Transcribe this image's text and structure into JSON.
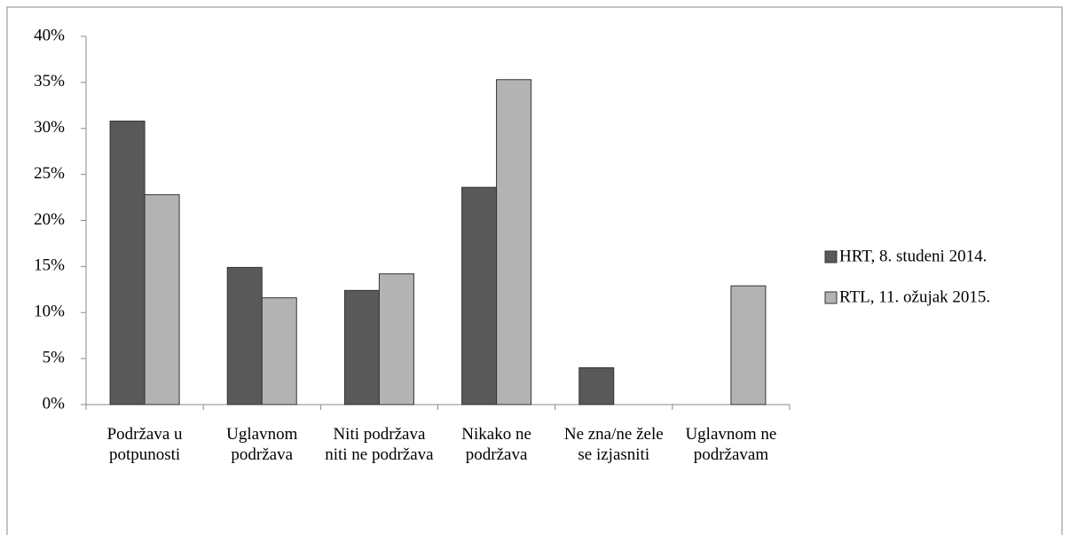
{
  "chart_data": {
    "type": "bar",
    "categories": [
      "Podržava u potpunosti",
      "Uglavnom podržava",
      "Niti podržava niti ne podržava",
      "Nikako ne podržava",
      "Ne zna/ne žele se izjasniti",
      "Uglavnom ne podržavam"
    ],
    "series": [
      {
        "name": "HRT, 8. studeni 2014.",
        "color": "#595959",
        "values": [
          30.8,
          14.9,
          12.4,
          23.6,
          4.0,
          0
        ]
      },
      {
        "name": "RTL, 11. ožujak 2015.",
        "color": "#b3b3b3",
        "values": [
          22.8,
          11.6,
          14.2,
          35.3,
          0,
          12.9
        ]
      }
    ],
    "ylim": [
      0,
      40
    ],
    "yticks": [
      {
        "value": 0,
        "label": "0%"
      },
      {
        "value": 5,
        "label": "5%"
      },
      {
        "value": 10,
        "label": "10%"
      },
      {
        "value": 15,
        "label": "15%"
      },
      {
        "value": 20,
        "label": "20%"
      },
      {
        "value": 25,
        "label": "25%"
      },
      {
        "value": 30,
        "label": "30%"
      },
      {
        "value": 35,
        "label": "35%"
      },
      {
        "value": 40,
        "label": "40%"
      }
    ],
    "grid": false,
    "legend": "right"
  }
}
